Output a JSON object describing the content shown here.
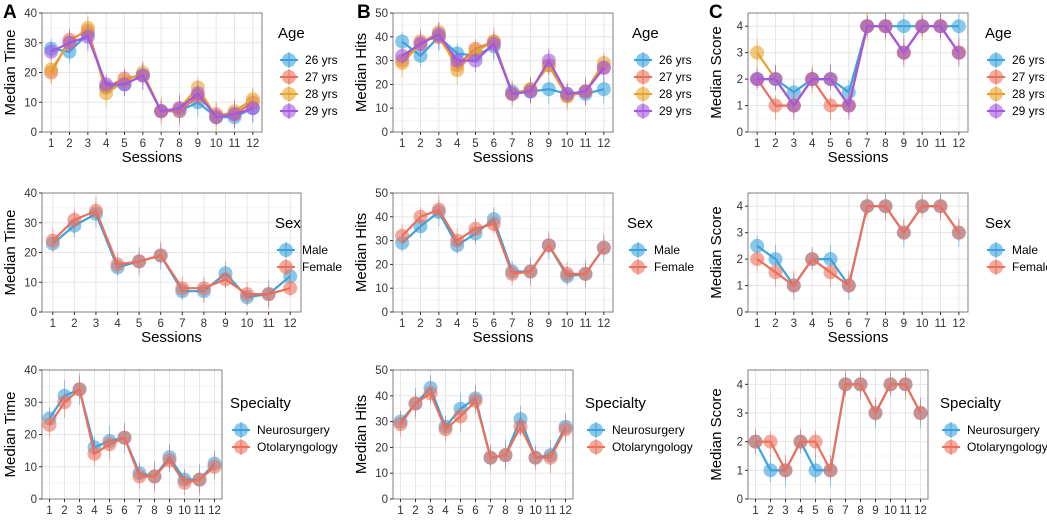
{
  "panel_letters": [
    "A",
    "B",
    "C"
  ],
  "palettes": {
    "age": [
      "#3ba3dd",
      "#ec6f5c",
      "#e6a32c",
      "#a257e0"
    ],
    "two": [
      "#3ba3dd",
      "#ec6f5c"
    ],
    "grid": "#e6e6e6",
    "frame": "#7f7f7f"
  },
  "chart_data": [
    {
      "id": "A1",
      "type": "line",
      "title": "",
      "xlabel": "Sessions",
      "ylabel": "Median Time",
      "x": [
        1,
        2,
        3,
        4,
        5,
        6,
        7,
        8,
        9,
        10,
        11,
        12
      ],
      "ylim": [
        0,
        40
      ],
      "yticks": [
        0,
        10,
        20,
        30,
        40
      ],
      "legend_title": "Age",
      "series": [
        {
          "name": "26 yrs",
          "values": [
            28,
            27,
            33,
            15,
            16,
            19,
            7,
            7,
            10,
            5,
            5,
            8
          ]
        },
        {
          "name": "27 yrs",
          "values": [
            20,
            31,
            34,
            15,
            18,
            19,
            7,
            7,
            12,
            6,
            6,
            10
          ]
        },
        {
          "name": "28 yrs",
          "values": [
            21,
            30,
            35,
            13,
            17,
            20,
            7,
            8,
            15,
            5,
            7,
            11
          ]
        },
        {
          "name": "29 yrs",
          "values": [
            27,
            30,
            32,
            16,
            16,
            19,
            7,
            8,
            13,
            5,
            6,
            8
          ]
        }
      ]
    },
    {
      "id": "B1",
      "type": "line",
      "title": "",
      "xlabel": "Sessions",
      "ylabel": "Median Hits",
      "x": [
        1,
        2,
        3,
        4,
        5,
        6,
        7,
        8,
        9,
        10,
        11,
        12
      ],
      "ylim": [
        0,
        50
      ],
      "yticks": [
        0,
        10,
        20,
        30,
        40,
        50
      ],
      "legend_title": "Age",
      "series": [
        {
          "name": "26 yrs",
          "values": [
            38,
            32,
            40,
            33,
            32,
            36,
            17,
            17,
            18,
            16,
            16,
            18
          ]
        },
        {
          "name": "27 yrs",
          "values": [
            30,
            38,
            40,
            28,
            35,
            38,
            16,
            18,
            28,
            15,
            17,
            27
          ]
        },
        {
          "name": "28 yrs",
          "values": [
            29,
            37,
            42,
            26,
            34,
            38,
            16,
            18,
            28,
            15,
            17,
            29
          ]
        },
        {
          "name": "29 yrs",
          "values": [
            32,
            37,
            41,
            30,
            30,
            37,
            16,
            17,
            30,
            16,
            17,
            27
          ]
        }
      ]
    },
    {
      "id": "C1",
      "type": "line",
      "title": "",
      "xlabel": "Sessions",
      "ylabel": "Median Score",
      "x": [
        1,
        2,
        3,
        4,
        5,
        6,
        7,
        8,
        9,
        10,
        11,
        12
      ],
      "ylim": [
        0,
        4.5
      ],
      "yticks": [
        0,
        1,
        2,
        3,
        4
      ],
      "legend_title": "Age",
      "series": [
        {
          "name": "26 yrs",
          "values": [
            2,
            2,
            1.5,
            2,
            2,
            1.5,
            4,
            4,
            4,
            4,
            4,
            4
          ]
        },
        {
          "name": "27 yrs",
          "values": [
            2,
            1,
            1,
            2,
            1,
            1,
            4,
            4,
            3,
            4,
            4,
            3
          ]
        },
        {
          "name": "28 yrs",
          "values": [
            3,
            2,
            1,
            2,
            2,
            1,
            4,
            4,
            3,
            4,
            4,
            3
          ]
        },
        {
          "name": "29 yrs",
          "values": [
            2,
            2,
            1,
            2,
            2,
            1,
            4,
            4,
            3,
            4,
            4,
            3
          ]
        }
      ]
    },
    {
      "id": "A2",
      "type": "line",
      "title": "",
      "xlabel": "Sessions",
      "ylabel": "Median Time",
      "x": [
        1,
        2,
        3,
        4,
        5,
        6,
        7,
        8,
        9,
        10,
        11,
        12
      ],
      "ylim": [
        0,
        40
      ],
      "yticks": [
        0,
        10,
        20,
        30,
        40
      ],
      "legend_title": "Sex",
      "series": [
        {
          "name": "Male",
          "values": [
            23,
            29,
            33,
            15,
            17,
            19,
            7,
            7,
            13,
            5,
            6,
            12
          ]
        },
        {
          "name": "Female",
          "values": [
            24,
            31,
            34,
            16,
            17,
            19,
            8,
            8,
            11,
            6,
            6,
            8
          ]
        }
      ]
    },
    {
      "id": "B2",
      "type": "line",
      "title": "",
      "xlabel": "Sessions",
      "ylabel": "Median Hits",
      "x": [
        1,
        2,
        3,
        4,
        5,
        6,
        7,
        8,
        9,
        10,
        11,
        12
      ],
      "ylim": [
        0,
        50
      ],
      "yticks": [
        0,
        10,
        20,
        30,
        40,
        50
      ],
      "legend_title": "Sex",
      "series": [
        {
          "name": "Male",
          "values": [
            29,
            36,
            42,
            28,
            33,
            39,
            17,
            17,
            28,
            15,
            16,
            27
          ]
        },
        {
          "name": "Female",
          "values": [
            32,
            40,
            43,
            30,
            35,
            37,
            16,
            17,
            28,
            16,
            16,
            27
          ]
        }
      ]
    },
    {
      "id": "C2",
      "type": "line",
      "title": "",
      "xlabel": "Sessions",
      "ylabel": "Median Score",
      "x": [
        1,
        2,
        3,
        4,
        5,
        6,
        7,
        8,
        9,
        10,
        11,
        12
      ],
      "ylim": [
        0,
        4.5
      ],
      "yticks": [
        0,
        1,
        2,
        3,
        4
      ],
      "legend_title": "Sex",
      "series": [
        {
          "name": "Male",
          "values": [
            2.5,
            2,
            1,
            2,
            2,
            1,
            4,
            4,
            3,
            4,
            4,
            3
          ]
        },
        {
          "name": "Female",
          "values": [
            2,
            1.5,
            1,
            2,
            1.5,
            1,
            4,
            4,
            3,
            4,
            4,
            3
          ]
        }
      ]
    },
    {
      "id": "A3",
      "type": "line",
      "title": "",
      "xlabel": "Sessions",
      "ylabel": "Median Time",
      "x": [
        1,
        2,
        3,
        4,
        5,
        6,
        7,
        8,
        9,
        10,
        11,
        12
      ],
      "ylim": [
        0,
        40
      ],
      "yticks": [
        0,
        10,
        20,
        30,
        40
      ],
      "legend_title": "Specialty",
      "series": [
        {
          "name": "Neurosurgery",
          "values": [
            25,
            32,
            34,
            16,
            18,
            19,
            8,
            7,
            13,
            6,
            6,
            11
          ]
        },
        {
          "name": "Otolaryngology",
          "values": [
            23,
            30,
            34,
            14,
            17,
            19,
            7,
            7,
            12,
            5,
            6,
            10
          ]
        }
      ]
    },
    {
      "id": "B3",
      "type": "line",
      "title": "",
      "xlabel": "Sessions",
      "ylabel": "Median Hits",
      "x": [
        1,
        2,
        3,
        4,
        5,
        6,
        7,
        8,
        9,
        10,
        11,
        12
      ],
      "ylim": [
        0,
        50
      ],
      "yticks": [
        0,
        10,
        20,
        30,
        40,
        50
      ],
      "legend_title": "Specialty",
      "series": [
        {
          "name": "Neurosurgery",
          "values": [
            30,
            37,
            43,
            28,
            35,
            39,
            16,
            17,
            31,
            16,
            17,
            28
          ]
        },
        {
          "name": "Otolaryngology",
          "values": [
            29,
            37,
            41,
            27,
            32,
            38,
            16,
            17,
            28,
            16,
            16,
            27
          ]
        }
      ]
    },
    {
      "id": "C3",
      "type": "line",
      "title": "",
      "xlabel": "Sessions",
      "ylabel": "Median Score",
      "x": [
        1,
        2,
        3,
        4,
        5,
        6,
        7,
        8,
        9,
        10,
        11,
        12
      ],
      "ylim": [
        0,
        4.5
      ],
      "yticks": [
        0,
        1,
        2,
        3,
        4
      ],
      "legend_title": "Specialty",
      "series": [
        {
          "name": "Neurosurgery",
          "values": [
            2,
            1,
            1,
            2,
            1,
            1,
            4,
            4,
            3,
            4,
            4,
            3
          ]
        },
        {
          "name": "Otolaryngology",
          "values": [
            2,
            2,
            1,
            2,
            2,
            1,
            4,
            4,
            3,
            4,
            4,
            3
          ]
        }
      ]
    }
  ]
}
